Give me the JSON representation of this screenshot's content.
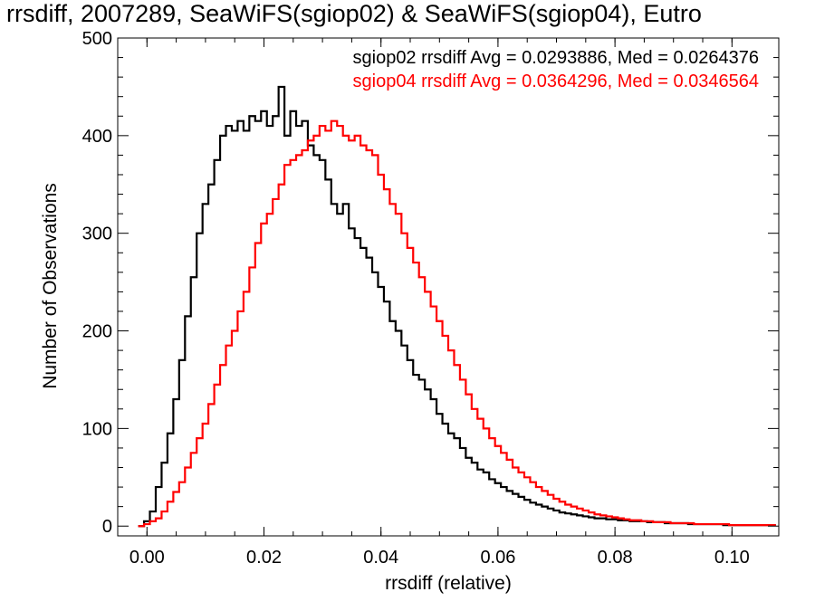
{
  "chart_data": {
    "type": "line",
    "title": "rrsdiff, 2007289, SeaWiFS(sgiop02) & SeaWiFS(sgiop04), Eutro",
    "xlabel": "rrsdiff (relative)",
    "ylabel": "Number of Observations",
    "xlim": [
      -0.005,
      0.108
    ],
    "ylim": [
      -10,
      500
    ],
    "x_ticks": [
      0.0,
      0.02,
      0.04,
      0.06,
      0.08,
      0.1
    ],
    "x_tick_labels": [
      "0.00",
      "0.02",
      "0.04",
      "0.06",
      "0.08",
      "0.10"
    ],
    "y_ticks": [
      0,
      100,
      200,
      300,
      400,
      500
    ],
    "y_tick_labels": [
      "0",
      "100",
      "200",
      "300",
      "400",
      "500"
    ],
    "grid": false,
    "step": true,
    "annotations": [
      {
        "text": "sgiop02 rrsdiff Avg = 0.0293886, Med = 0.0264376",
        "color": "#000000"
      },
      {
        "text": "sgiop04 rrsdiff Avg = 0.0364296, Med = 0.0346564",
        "color": "#ff0000"
      }
    ],
    "series": [
      {
        "color": "#000000",
        "x": [
          -0.001,
          0.0,
          0.001,
          0.002,
          0.003,
          0.004,
          0.005,
          0.006,
          0.007,
          0.008,
          0.009,
          0.01,
          0.011,
          0.012,
          0.013,
          0.014,
          0.015,
          0.016,
          0.017,
          0.018,
          0.019,
          0.02,
          0.021,
          0.022,
          0.023,
          0.024,
          0.025,
          0.026,
          0.027,
          0.028,
          0.029,
          0.03,
          0.031,
          0.032,
          0.033,
          0.034,
          0.035,
          0.036,
          0.037,
          0.038,
          0.039,
          0.04,
          0.041,
          0.042,
          0.043,
          0.044,
          0.045,
          0.046,
          0.047,
          0.048,
          0.049,
          0.05,
          0.051,
          0.052,
          0.053,
          0.054,
          0.055,
          0.056,
          0.057,
          0.058,
          0.059,
          0.06,
          0.061,
          0.062,
          0.063,
          0.064,
          0.065,
          0.066,
          0.067,
          0.068,
          0.069,
          0.07,
          0.071,
          0.072,
          0.073,
          0.074,
          0.075,
          0.076,
          0.077,
          0.078,
          0.079,
          0.08,
          0.081,
          0.082,
          0.083,
          0.084,
          0.085,
          0.086,
          0.087,
          0.088,
          0.089,
          0.09,
          0.091,
          0.092,
          0.093,
          0.094,
          0.095,
          0.096,
          0.097,
          0.098,
          0.099,
          0.1,
          0.101,
          0.102,
          0.103,
          0.104,
          0.105,
          0.106,
          0.107
        ],
        "values": [
          0,
          5,
          15,
          40,
          65,
          95,
          130,
          170,
          215,
          255,
          300,
          330,
          350,
          375,
          400,
          410,
          405,
          415,
          405,
          420,
          415,
          425,
          410,
          420,
          450,
          400,
          425,
          410,
          415,
          390,
          380,
          375,
          355,
          330,
          320,
          330,
          305,
          295,
          285,
          275,
          260,
          245,
          230,
          210,
          200,
          185,
          170,
          155,
          150,
          140,
          130,
          115,
          105,
          95,
          90,
          80,
          70,
          65,
          58,
          55,
          48,
          44,
          40,
          36,
          33,
          30,
          27,
          24,
          22,
          20,
          18,
          16,
          14,
          13,
          12,
          11,
          10,
          9,
          8,
          8,
          7,
          7,
          6,
          6,
          5,
          5,
          5,
          4,
          4,
          4,
          3,
          3,
          3,
          3,
          2,
          2,
          2,
          2,
          2,
          2,
          1,
          1,
          1,
          1,
          1,
          1,
          1,
          1,
          1
        ]
      },
      {
        "color": "#ff0000",
        "x": [
          -0.001,
          0.0,
          0.001,
          0.002,
          0.003,
          0.004,
          0.005,
          0.006,
          0.007,
          0.008,
          0.009,
          0.01,
          0.011,
          0.012,
          0.013,
          0.014,
          0.015,
          0.016,
          0.017,
          0.018,
          0.019,
          0.02,
          0.021,
          0.022,
          0.023,
          0.024,
          0.025,
          0.026,
          0.027,
          0.028,
          0.029,
          0.03,
          0.031,
          0.032,
          0.033,
          0.034,
          0.035,
          0.036,
          0.037,
          0.038,
          0.039,
          0.04,
          0.041,
          0.042,
          0.043,
          0.044,
          0.045,
          0.046,
          0.047,
          0.048,
          0.049,
          0.05,
          0.051,
          0.052,
          0.053,
          0.054,
          0.055,
          0.056,
          0.057,
          0.058,
          0.059,
          0.06,
          0.061,
          0.062,
          0.063,
          0.064,
          0.065,
          0.066,
          0.067,
          0.068,
          0.069,
          0.07,
          0.071,
          0.072,
          0.073,
          0.074,
          0.075,
          0.076,
          0.077,
          0.078,
          0.079,
          0.08,
          0.081,
          0.082,
          0.083,
          0.084,
          0.085,
          0.086,
          0.087,
          0.088,
          0.089,
          0.09,
          0.091,
          0.092,
          0.093,
          0.094,
          0.095,
          0.096,
          0.097,
          0.098,
          0.099,
          0.1,
          0.101,
          0.102,
          0.103,
          0.104,
          0.105,
          0.106,
          0.107
        ],
        "values": [
          0,
          2,
          5,
          8,
          15,
          25,
          35,
          45,
          60,
          75,
          90,
          105,
          125,
          145,
          165,
          185,
          200,
          220,
          240,
          265,
          290,
          310,
          320,
          335,
          350,
          370,
          375,
          380,
          385,
          395,
          400,
          410,
          405,
          415,
          410,
          400,
          395,
          400,
          390,
          385,
          380,
          360,
          345,
          330,
          320,
          300,
          285,
          270,
          255,
          240,
          225,
          210,
          195,
          180,
          165,
          150,
          135,
          120,
          110,
          100,
          90,
          82,
          75,
          68,
          60,
          55,
          50,
          45,
          40,
          36,
          32,
          28,
          25,
          22,
          20,
          18,
          16,
          14,
          12,
          11,
          10,
          9,
          8,
          7,
          6,
          6,
          5,
          5,
          4,
          4,
          4,
          3,
          3,
          3,
          3,
          2,
          2,
          2,
          2,
          2,
          2,
          1,
          1,
          1,
          1,
          1,
          1,
          1,
          1
        ]
      }
    ]
  }
}
